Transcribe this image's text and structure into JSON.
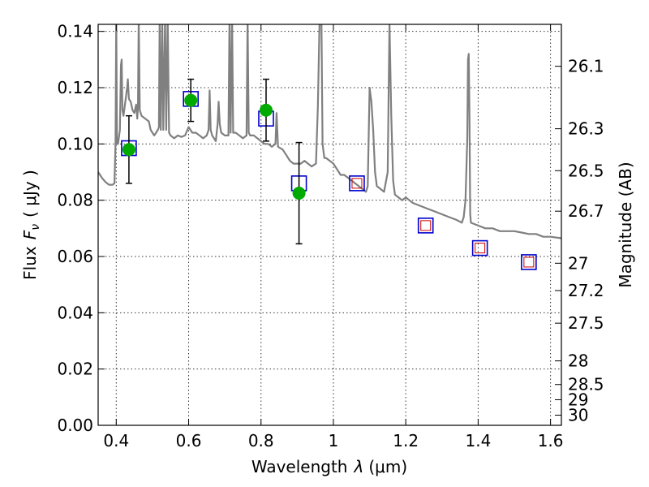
{
  "chart_data": {
    "type": "scatter",
    "xlabel_prefix": "Wavelength",
    "xlabel_symbol": "λ",
    "xlabel_unit": "(μm)",
    "ylabel_prefix": "Flux",
    "ylabel_symbol": "F",
    "ylabel_subscript": "ν",
    "ylabel_unit": "( μJy )",
    "y2label": "Magnitude (AB)",
    "xlim": [
      0.35,
      1.63
    ],
    "ylim": [
      0.0,
      0.1425
    ],
    "xticks": [
      0.4,
      0.6,
      0.8,
      1.0,
      1.2,
      1.4,
      1.6
    ],
    "xtick_labels": [
      "0.4",
      "0.6",
      "0.8",
      "1",
      "1.2",
      "1.4",
      "1.6"
    ],
    "yticks": [
      0.0,
      0.02,
      0.04,
      0.06,
      0.08,
      0.1,
      0.12,
      0.14
    ],
    "ytick_labels": [
      "0.00",
      "0.02",
      "0.04",
      "0.06",
      "0.08",
      "0.10",
      "0.12",
      "0.14"
    ],
    "y2ticks": [
      {
        "label": "26.1",
        "flux": 0.1276
      },
      {
        "label": "26.3",
        "flux": 0.1054
      },
      {
        "label": "26.5",
        "flux": 0.0905
      },
      {
        "label": "26.7",
        "flux": 0.0761
      },
      {
        "label": "27",
        "flux": 0.0576
      },
      {
        "label": "27.2",
        "flux": 0.0479
      },
      {
        "label": "27.5",
        "flux": 0.0363
      },
      {
        "label": "28",
        "flux": 0.0229
      },
      {
        "label": "28.5",
        "flux": 0.0145
      },
      {
        "label": "29",
        "flux": 0.0091
      },
      {
        "label": "30",
        "flux": 0.0036
      }
    ],
    "grid": true,
    "colors": {
      "template": "#808080",
      "model_square": "#0000cc",
      "inner_square": "#cc0000",
      "observed": "#00aa00",
      "errorbar": "#000000"
    },
    "model_squares": [
      {
        "x": 0.435,
        "y": 0.0985,
        "inner": false
      },
      {
        "x": 0.606,
        "y": 0.116,
        "inner": false
      },
      {
        "x": 0.814,
        "y": 0.109,
        "inner": false
      },
      {
        "x": 0.905,
        "y": 0.086,
        "inner": false
      },
      {
        "x": 1.065,
        "y": 0.086,
        "inner": true
      },
      {
        "x": 1.255,
        "y": 0.071,
        "inner": true
      },
      {
        "x": 1.405,
        "y": 0.063,
        "inner": true
      },
      {
        "x": 1.54,
        "y": 0.058,
        "inner": true
      }
    ],
    "observed": [
      {
        "x": 0.435,
        "y": 0.098,
        "err": 0.012
      },
      {
        "x": 0.606,
        "y": 0.1155,
        "err": 0.0075
      },
      {
        "x": 0.814,
        "y": 0.112,
        "err": 0.011
      },
      {
        "x": 0.905,
        "y": 0.0825,
        "err": 0.018
      }
    ],
    "template_spectrum": [
      [
        0.35,
        0.09
      ],
      [
        0.36,
        0.088
      ],
      [
        0.37,
        0.0865
      ],
      [
        0.38,
        0.0855
      ],
      [
        0.39,
        0.0855
      ],
      [
        0.395,
        0.086
      ],
      [
        0.398,
        0.1
      ],
      [
        0.4,
        0.145
      ],
      [
        0.402,
        0.1
      ],
      [
        0.405,
        0.1
      ],
      [
        0.41,
        0.105
      ],
      [
        0.413,
        0.128
      ],
      [
        0.415,
        0.13
      ],
      [
        0.417,
        0.112
      ],
      [
        0.42,
        0.11
      ],
      [
        0.425,
        0.115
      ],
      [
        0.43,
        0.12
      ],
      [
        0.432,
        0.123
      ],
      [
        0.435,
        0.116
      ],
      [
        0.44,
        0.115
      ],
      [
        0.445,
        0.112
      ],
      [
        0.45,
        0.111
      ],
      [
        0.455,
        0.114
      ],
      [
        0.458,
        0.109
      ],
      [
        0.46,
        0.113
      ],
      [
        0.462,
        0.145
      ],
      [
        0.465,
        0.112
      ],
      [
        0.47,
        0.11
      ],
      [
        0.48,
        0.109
      ],
      [
        0.49,
        0.108
      ],
      [
        0.495,
        0.105
      ],
      [
        0.5,
        0.104
      ],
      [
        0.505,
        0.103
      ],
      [
        0.51,
        0.104
      ],
      [
        0.515,
        0.105
      ],
      [
        0.518,
        0.106
      ],
      [
        0.52,
        0.145
      ],
      [
        0.523,
        0.105
      ],
      [
        0.527,
        0.145
      ],
      [
        0.53,
        0.105
      ],
      [
        0.535,
        0.145
      ],
      [
        0.538,
        0.105
      ],
      [
        0.542,
        0.145
      ],
      [
        0.546,
        0.104
      ],
      [
        0.55,
        0.103
      ],
      [
        0.56,
        0.102
      ],
      [
        0.57,
        0.103
      ],
      [
        0.58,
        0.1025
      ],
      [
        0.59,
        0.103
      ],
      [
        0.6,
        0.106
      ],
      [
        0.61,
        0.104
      ],
      [
        0.62,
        0.104
      ],
      [
        0.63,
        0.103
      ],
      [
        0.64,
        0.102
      ],
      [
        0.65,
        0.103
      ],
      [
        0.655,
        0.105
      ],
      [
        0.658,
        0.119
      ],
      [
        0.661,
        0.105
      ],
      [
        0.665,
        0.103
      ],
      [
        0.67,
        0.102
      ],
      [
        0.675,
        0.101
      ],
      [
        0.68,
        0.107
      ],
      [
        0.683,
        0.115
      ],
      [
        0.686,
        0.107
      ],
      [
        0.69,
        0.104
      ],
      [
        0.7,
        0.103
      ],
      [
        0.71,
        0.103
      ],
      [
        0.713,
        0.145
      ],
      [
        0.716,
        0.104
      ],
      [
        0.72,
        0.145
      ],
      [
        0.723,
        0.104
      ],
      [
        0.73,
        0.104
      ],
      [
        0.74,
        0.103
      ],
      [
        0.75,
        0.102
      ],
      [
        0.76,
        0.103
      ],
      [
        0.763,
        0.145
      ],
      [
        0.766,
        0.104
      ],
      [
        0.77,
        0.103
      ],
      [
        0.78,
        0.103
      ],
      [
        0.79,
        0.102
      ],
      [
        0.8,
        0.101
      ],
      [
        0.81,
        0.1
      ],
      [
        0.82,
        0.1
      ],
      [
        0.83,
        0.099
      ],
      [
        0.84,
        0.1
      ],
      [
        0.843,
        0.111
      ],
      [
        0.847,
        0.099
      ],
      [
        0.86,
        0.098
      ],
      [
        0.87,
        0.096
      ],
      [
        0.88,
        0.094
      ],
      [
        0.89,
        0.093
      ],
      [
        0.9,
        0.093
      ],
      [
        0.91,
        0.093
      ],
      [
        0.92,
        0.094
      ],
      [
        0.93,
        0.093
      ],
      [
        0.94,
        0.092
      ],
      [
        0.952,
        0.093
      ],
      [
        0.957,
        0.113
      ],
      [
        0.962,
        0.145
      ],
      [
        0.967,
        0.145
      ],
      [
        0.97,
        0.1
      ],
      [
        0.975,
        0.095
      ],
      [
        0.98,
        0.095
      ],
      [
        0.99,
        0.094
      ],
      [
        1.0,
        0.093
      ],
      [
        1.01,
        0.091
      ],
      [
        1.02,
        0.089
      ],
      [
        1.03,
        0.089
      ],
      [
        1.04,
        0.088
      ],
      [
        1.05,
        0.087
      ],
      [
        1.06,
        0.086
      ],
      [
        1.07,
        0.085
      ],
      [
        1.08,
        0.084
      ],
      [
        1.09,
        0.083
      ],
      [
        1.095,
        0.085
      ],
      [
        1.1,
        0.12
      ],
      [
        1.105,
        0.115
      ],
      [
        1.11,
        0.105
      ],
      [
        1.115,
        0.09
      ],
      [
        1.12,
        0.085
      ],
      [
        1.13,
        0.084
      ],
      [
        1.14,
        0.083
      ],
      [
        1.15,
        0.09
      ],
      [
        1.155,
        0.143
      ],
      [
        1.16,
        0.11
      ],
      [
        1.165,
        0.087
      ],
      [
        1.17,
        0.082
      ],
      [
        1.18,
        0.081
      ],
      [
        1.19,
        0.08
      ],
      [
        1.2,
        0.081
      ],
      [
        1.21,
        0.08
      ],
      [
        1.22,
        0.079
      ],
      [
        1.24,
        0.078
      ],
      [
        1.26,
        0.077
      ],
      [
        1.28,
        0.076
      ],
      [
        1.3,
        0.075
      ],
      [
        1.32,
        0.074
      ],
      [
        1.34,
        0.073
      ],
      [
        1.355,
        0.072
      ],
      [
        1.36,
        0.074
      ],
      [
        1.365,
        0.08
      ],
      [
        1.37,
        0.102
      ],
      [
        1.372,
        0.13
      ],
      [
        1.374,
        0.132
      ],
      [
        1.376,
        0.11
      ],
      [
        1.378,
        0.075
      ],
      [
        1.38,
        0.072
      ],
      [
        1.4,
        0.071
      ],
      [
        1.42,
        0.07
      ],
      [
        1.44,
        0.07
      ],
      [
        1.46,
        0.069
      ],
      [
        1.48,
        0.069
      ],
      [
        1.5,
        0.069
      ],
      [
        1.52,
        0.0685
      ],
      [
        1.54,
        0.068
      ],
      [
        1.56,
        0.068
      ],
      [
        1.58,
        0.067
      ],
      [
        1.6,
        0.067
      ],
      [
        1.63,
        0.0665
      ]
    ]
  }
}
